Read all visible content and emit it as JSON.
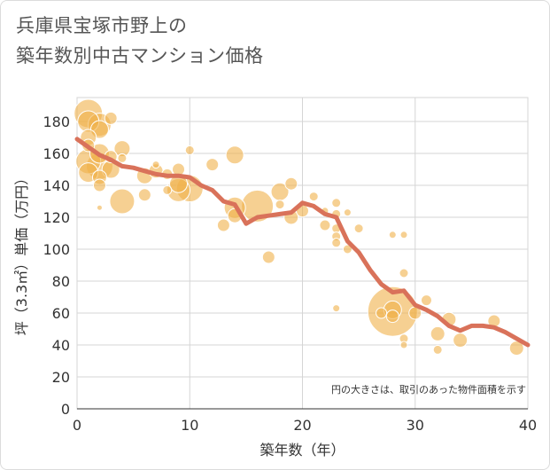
{
  "title_line1": "兵庫県宝塚市野上の",
  "title_line2": "築年数別中古マンション価格",
  "colors": {
    "bubble": "#f0b04a",
    "line": "#d9725a",
    "grid": "#d5d5d5",
    "text": "#333333"
  },
  "chart_data": {
    "type": "scatter",
    "xlabel": "築年数（年）",
    "ylabel": "坪（3.3㎡）単価（万円）",
    "note": "円の大きさは、取引のあった物件面積を示す",
    "xlim": [
      0,
      40
    ],
    "ylim": [
      0,
      195
    ],
    "xticks": [
      "0",
      "10",
      "20",
      "30",
      "40"
    ],
    "yticks": [
      "0",
      "20",
      "40",
      "60",
      "80",
      "100",
      "120",
      "140",
      "160",
      "180"
    ],
    "bubbles": [
      {
        "x": 1,
        "y": 185,
        "s": 16
      },
      {
        "x": 1,
        "y": 180,
        "s": 12
      },
      {
        "x": 1,
        "y": 170,
        "s": 9
      },
      {
        "x": 1,
        "y": 155,
        "s": 14
      },
      {
        "x": 1,
        "y": 148,
        "s": 11
      },
      {
        "x": 1,
        "y": 165,
        "s": 7
      },
      {
        "x": 2,
        "y": 178,
        "s": 13
      },
      {
        "x": 2,
        "y": 175,
        "s": 10
      },
      {
        "x": 2,
        "y": 160,
        "s": 11
      },
      {
        "x": 2,
        "y": 152,
        "s": 15
      },
      {
        "x": 2,
        "y": 145,
        "s": 8
      },
      {
        "x": 2,
        "y": 140,
        "s": 7
      },
      {
        "x": 2,
        "y": 126,
        "s": 3
      },
      {
        "x": 3,
        "y": 182,
        "s": 7
      },
      {
        "x": 3,
        "y": 158,
        "s": 7
      },
      {
        "x": 3,
        "y": 150,
        "s": 10
      },
      {
        "x": 4,
        "y": 163,
        "s": 9
      },
      {
        "x": 4,
        "y": 157,
        "s": 5
      },
      {
        "x": 4,
        "y": 130,
        "s": 14
      },
      {
        "x": 6,
        "y": 134,
        "s": 7
      },
      {
        "x": 6,
        "y": 146,
        "s": 9
      },
      {
        "x": 7,
        "y": 149,
        "s": 8
      },
      {
        "x": 7,
        "y": 153,
        "s": 4
      },
      {
        "x": 8,
        "y": 147,
        "s": 6
      },
      {
        "x": 8,
        "y": 137,
        "s": 5
      },
      {
        "x": 9,
        "y": 137,
        "s": 13
      },
      {
        "x": 9,
        "y": 141,
        "s": 10
      },
      {
        "x": 9,
        "y": 150,
        "s": 7
      },
      {
        "x": 10,
        "y": 138,
        "s": 15
      },
      {
        "x": 10,
        "y": 162,
        "s": 5
      },
      {
        "x": 12,
        "y": 153,
        "s": 7
      },
      {
        "x": 13,
        "y": 115,
        "s": 7
      },
      {
        "x": 14,
        "y": 159,
        "s": 10
      },
      {
        "x": 14,
        "y": 126,
        "s": 12
      },
      {
        "x": 14,
        "y": 121,
        "s": 8
      },
      {
        "x": 16,
        "y": 127,
        "s": 18
      },
      {
        "x": 17,
        "y": 95,
        "s": 7
      },
      {
        "x": 18,
        "y": 136,
        "s": 10
      },
      {
        "x": 18,
        "y": 128,
        "s": 5
      },
      {
        "x": 19,
        "y": 141,
        "s": 7
      },
      {
        "x": 19,
        "y": 120,
        "s": 8
      },
      {
        "x": 20,
        "y": 124,
        "s": 7
      },
      {
        "x": 21,
        "y": 133,
        "s": 5
      },
      {
        "x": 22,
        "y": 124,
        "s": 4
      },
      {
        "x": 22,
        "y": 115,
        "s": 6
      },
      {
        "x": 23,
        "y": 129,
        "s": 5
      },
      {
        "x": 23,
        "y": 122,
        "s": 5
      },
      {
        "x": 23,
        "y": 113,
        "s": 5
      },
      {
        "x": 23,
        "y": 108,
        "s": 5
      },
      {
        "x": 23,
        "y": 104,
        "s": 5
      },
      {
        "x": 23,
        "y": 63,
        "s": 4
      },
      {
        "x": 24,
        "y": 123,
        "s": 4
      },
      {
        "x": 24,
        "y": 100,
        "s": 5
      },
      {
        "x": 25,
        "y": 113,
        "s": 5
      },
      {
        "x": 27,
        "y": 60,
        "s": 6
      },
      {
        "x": 28,
        "y": 61,
        "s": 28
      },
      {
        "x": 28,
        "y": 62,
        "s": 10
      },
      {
        "x": 28,
        "y": 58,
        "s": 7
      },
      {
        "x": 28,
        "y": 109,
        "s": 4
      },
      {
        "x": 29,
        "y": 109,
        "s": 4
      },
      {
        "x": 29,
        "y": 85,
        "s": 5
      },
      {
        "x": 29,
        "y": 44,
        "s": 5
      },
      {
        "x": 29,
        "y": 40,
        "s": 4
      },
      {
        "x": 30,
        "y": 60,
        "s": 7
      },
      {
        "x": 31,
        "y": 68,
        "s": 6
      },
      {
        "x": 32,
        "y": 47,
        "s": 8
      },
      {
        "x": 32,
        "y": 37,
        "s": 5
      },
      {
        "x": 33,
        "y": 56,
        "s": 8
      },
      {
        "x": 34,
        "y": 43,
        "s": 8
      },
      {
        "x": 37,
        "y": 55,
        "s": 7
      },
      {
        "x": 39,
        "y": 38,
        "s": 8
      }
    ],
    "trend": [
      {
        "x": 0,
        "y": 169
      },
      {
        "x": 1,
        "y": 164
      },
      {
        "x": 2,
        "y": 159
      },
      {
        "x": 3,
        "y": 156
      },
      {
        "x": 4,
        "y": 152
      },
      {
        "x": 5,
        "y": 151
      },
      {
        "x": 6,
        "y": 149
      },
      {
        "x": 7,
        "y": 147
      },
      {
        "x": 8,
        "y": 146
      },
      {
        "x": 9,
        "y": 146
      },
      {
        "x": 10,
        "y": 145
      },
      {
        "x": 11,
        "y": 140
      },
      {
        "x": 12,
        "y": 137
      },
      {
        "x": 13,
        "y": 130
      },
      {
        "x": 14,
        "y": 128
      },
      {
        "x": 15,
        "y": 116
      },
      {
        "x": 16,
        "y": 120
      },
      {
        "x": 17,
        "y": 121
      },
      {
        "x": 18,
        "y": 122
      },
      {
        "x": 19,
        "y": 123
      },
      {
        "x": 20,
        "y": 129
      },
      {
        "x": 21,
        "y": 127
      },
      {
        "x": 22,
        "y": 122
      },
      {
        "x": 23,
        "y": 120
      },
      {
        "x": 24,
        "y": 105
      },
      {
        "x": 25,
        "y": 98
      },
      {
        "x": 26,
        "y": 87
      },
      {
        "x": 27,
        "y": 78
      },
      {
        "x": 28,
        "y": 73
      },
      {
        "x": 29,
        "y": 74
      },
      {
        "x": 30,
        "y": 65
      },
      {
        "x": 31,
        "y": 62
      },
      {
        "x": 32,
        "y": 58
      },
      {
        "x": 33,
        "y": 52
      },
      {
        "x": 34,
        "y": 49
      },
      {
        "x": 35,
        "y": 52
      },
      {
        "x": 36,
        "y": 52
      },
      {
        "x": 37,
        "y": 51
      },
      {
        "x": 38,
        "y": 48
      },
      {
        "x": 39,
        "y": 44
      },
      {
        "x": 40,
        "y": 40
      }
    ]
  }
}
